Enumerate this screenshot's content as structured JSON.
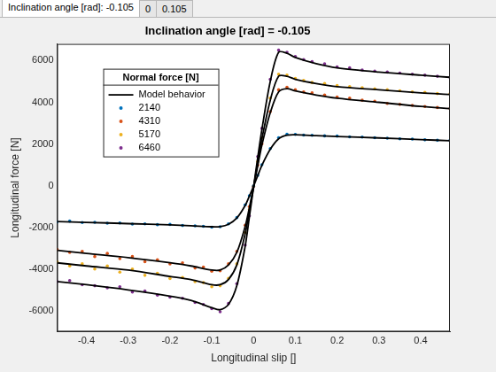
{
  "tabs": [
    "Inclination angle [rad]: -0.105",
    "0",
    "0.105"
  ],
  "chart_data": {
    "type": "scatter",
    "title": "Inclination angle [rad] = -0.105",
    "x_label": "Longitudinal slip []",
    "y_label": "Longitudinal force [N]",
    "xlim": [
      -0.47,
      0.47
    ],
    "ylim": [
      -7000,
      6800
    ],
    "xticks": [
      -0.4,
      -0.3,
      -0.2,
      -0.1,
      0,
      0.1,
      0.2,
      0.3,
      0.4
    ],
    "yticks": [
      -6000,
      -4000,
      -2000,
      0,
      2000,
      4000,
      6000
    ],
    "grid": false,
    "legend": "upper left",
    "legend_title": "Normal force [N]",
    "x": [
      -0.47,
      -0.44,
      -0.41,
      -0.38,
      -0.35,
      -0.32,
      -0.29,
      -0.26,
      -0.23,
      -0.2,
      -0.17,
      -0.14,
      -0.12,
      -0.1,
      -0.08,
      -0.06,
      -0.04,
      -0.02,
      -0.01,
      0,
      0.01,
      0.02,
      0.04,
      0.06,
      0.08,
      0.1,
      0.12,
      0.14,
      0.17,
      0.2,
      0.23,
      0.26,
      0.29,
      0.32,
      0.35,
      0.38,
      0.41,
      0.44,
      0.47
    ],
    "series": [
      {
        "name": "Model behavior",
        "type": "line",
        "color": "#000000",
        "line_style": "solid",
        "x": [
          -0.47,
          -0.4,
          -0.3,
          -0.2,
          -0.15,
          -0.1,
          -0.08,
          -0.06,
          -0.04,
          -0.02,
          -0.01,
          0,
          0.01,
          0.02,
          0.04,
          0.06,
          0.08,
          0.1,
          0.15,
          0.2,
          0.3,
          0.4,
          0.47
        ],
        "curves": [
          [
            -1720,
            -1760,
            -1820,
            -1880,
            -1920,
            -1970,
            -1960,
            -1850,
            -1550,
            -950,
            -500,
            -30,
            480,
            980,
            1750,
            2250,
            2420,
            2440,
            2400,
            2360,
            2290,
            2210,
            2160
          ],
          [
            -3100,
            -3250,
            -3450,
            -3700,
            -3850,
            -4050,
            -4050,
            -3800,
            -3200,
            -1950,
            -1050,
            -60,
            950,
            1950,
            3500,
            4500,
            4650,
            4550,
            4350,
            4200,
            4000,
            3800,
            3700
          ],
          [
            -3700,
            -3850,
            -4050,
            -4350,
            -4500,
            -4750,
            -4750,
            -4500,
            -3800,
            -2300,
            -1200,
            -60,
            1100,
            2250,
            4100,
            5250,
            5250,
            5100,
            4900,
            4750,
            4600,
            4450,
            4380
          ],
          [
            -4600,
            -4750,
            -5000,
            -5300,
            -5500,
            -5850,
            -5950,
            -5700,
            -4800,
            -2900,
            -1500,
            -80,
            1350,
            2700,
            5000,
            6400,
            6350,
            6150,
            5850,
            5650,
            5450,
            5300,
            5200
          ]
        ]
      },
      {
        "name": "2140",
        "type": "scatter",
        "marker": "circle",
        "color": "#0072bd",
        "values": [
          -1740,
          -1700,
          -1770,
          -1760,
          -1800,
          -1790,
          -1840,
          -1830,
          -1870,
          -1860,
          -1910,
          -1930,
          -1950,
          -1990,
          -1970,
          -1830,
          -1530,
          -920,
          -480,
          -20,
          500,
          1000,
          1780,
          2300,
          2470,
          2460,
          2430,
          2420,
          2390,
          2380,
          2340,
          2330,
          2300,
          2280,
          2250,
          2240,
          2200,
          2180,
          2170
        ]
      },
      {
        "name": "4310",
        "type": "scatter",
        "marker": "circle",
        "color": "#d95319",
        "values": [
          -3050,
          -3200,
          -3150,
          -3400,
          -3250,
          -3500,
          -3400,
          -3650,
          -3550,
          -3750,
          -3700,
          -3950,
          -3900,
          -4100,
          -4080,
          -3750,
          -3150,
          -1900,
          -1000,
          -40,
          980,
          2000,
          3550,
          4600,
          4720,
          4600,
          4500,
          4450,
          4350,
          4250,
          4200,
          4100,
          4050,
          3950,
          3900,
          3850,
          3800,
          3750,
          3700
        ]
      },
      {
        "name": "5170",
        "type": "scatter",
        "marker": "circle",
        "color": "#edb120",
        "values": [
          -3650,
          -3850,
          -3750,
          -4000,
          -3850,
          -4150,
          -4000,
          -4300,
          -4200,
          -4450,
          -4400,
          -4600,
          -4650,
          -4850,
          -4800,
          -4450,
          -3750,
          -2250,
          -1150,
          -40,
          1150,
          2300,
          4200,
          5350,
          5300,
          5150,
          5050,
          4950,
          4900,
          4800,
          4750,
          4700,
          4650,
          4600,
          4550,
          4500,
          4480,
          4420,
          4400
        ]
      },
      {
        "name": "6460",
        "type": "scatter",
        "marker": "circle",
        "color": "#7e2f8e",
        "values": [
          -4600,
          -4550,
          -4750,
          -4800,
          -4900,
          -4850,
          -5100,
          -5050,
          -5250,
          -5350,
          -5400,
          -5600,
          -5700,
          -5900,
          -6050,
          -5650,
          -4700,
          -2850,
          -1450,
          -60,
          1400,
          2750,
          5100,
          6500,
          6400,
          6200,
          6050,
          5950,
          5850,
          5700,
          5650,
          5550,
          5500,
          5450,
          5400,
          5350,
          5300,
          5250,
          5200
        ]
      }
    ]
  }
}
